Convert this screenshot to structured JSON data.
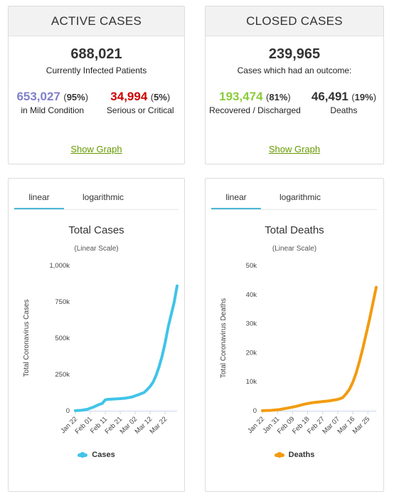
{
  "active_cases": {
    "header": "ACTIVE CASES",
    "total": "688,021",
    "total_label": "Currently Infected Patients",
    "mild": {
      "value": "653,027",
      "pct": "95%",
      "label": "in Mild Condition",
      "color": "#8080cc"
    },
    "serious": {
      "value": "34,994",
      "pct": "5%",
      "label": "Serious or Critical",
      "color": "#cc0000"
    },
    "link": "Show Graph"
  },
  "closed_cases": {
    "header": "CLOSED CASES",
    "total": "239,965",
    "total_label": "Cases which had an outcome:",
    "recovered": {
      "value": "193,474",
      "pct": "81%",
      "label": "Recovered / Discharged",
      "color": "#8acc3a"
    },
    "deaths": {
      "value": "46,491",
      "pct": "19%",
      "label": "Deaths",
      "color": "#333333"
    },
    "link": "Show Graph"
  },
  "cases_chart_panel": {
    "tabs": [
      "linear",
      "logarithmic"
    ],
    "active_tab": "linear"
  },
  "deaths_chart_panel": {
    "tabs": [
      "linear",
      "logarithmic"
    ],
    "active_tab": "linear"
  },
  "chart_data": [
    {
      "type": "line",
      "title": "Total Cases",
      "subtitle": "(Linear Scale)",
      "ylabel": "Total Coronavirus Cases",
      "xlabel": "",
      "ylim": [
        0,
        1000000
      ],
      "yticks": [
        0,
        250000,
        500000,
        750000,
        1000000
      ],
      "ytick_labels": [
        "0",
        "250k",
        "500k",
        "750k",
        "1,000k"
      ],
      "xtick_labels": [
        "Jan 22",
        "Feb 01",
        "Feb 11",
        "Feb 21",
        "Mar 02",
        "Mar 12",
        "Mar 22"
      ],
      "xtick_days": [
        0,
        10,
        20,
        30,
        40,
        50,
        60
      ],
      "x_range": [
        0,
        68
      ],
      "color": "#40c4e8",
      "legend": "bottom-center",
      "series": [
        {
          "name": "Cases",
          "x": [
            0,
            4,
            8,
            12,
            14,
            16,
            18,
            20,
            22,
            26,
            30,
            34,
            38,
            42,
            46,
            48,
            50,
            52,
            54,
            56,
            58,
            60,
            62,
            64,
            66,
            68
          ],
          "values": [
            555,
            2800,
            9800,
            24500,
            34500,
            43100,
            51100,
            75200,
            78600,
            81100,
            83100,
            87100,
            95100,
            110000,
            125900,
            145300,
            167500,
            198000,
            245000,
            305000,
            378000,
            468000,
            575000,
            660000,
            745000,
            860000
          ]
        }
      ]
    },
    {
      "type": "line",
      "title": "Total Deaths",
      "subtitle": "(Linear Scale)",
      "ylabel": "Total Coronavirus Deaths",
      "xlabel": "",
      "ylim": [
        0,
        50000
      ],
      "yticks": [
        0,
        10000,
        20000,
        30000,
        40000,
        50000
      ],
      "ytick_labels": [
        "0",
        "10k",
        "20k",
        "30k",
        "40k",
        "50k"
      ],
      "xtick_labels": [
        "Jan 22",
        "Jan 31",
        "Feb 09",
        "Feb 18",
        "Feb 27",
        "Mar 07",
        "Mar 16",
        "Mar 25"
      ],
      "xtick_days": [
        0,
        9,
        18,
        27,
        36,
        45,
        54,
        63
      ],
      "x_range": [
        0,
        68
      ],
      "color": "#f29b10",
      "legend": "bottom-center",
      "series": [
        {
          "name": "Deaths",
          "x": [
            0,
            5,
            10,
            15,
            20,
            25,
            30,
            35,
            40,
            45,
            48,
            50,
            52,
            54,
            56,
            58,
            60,
            62,
            64,
            66,
            68
          ],
          "values": [
            17,
            130,
            400,
            900,
            1500,
            2250,
            2800,
            3100,
            3400,
            3900,
            4500,
            5800,
            7400,
            9800,
            13000,
            17000,
            21500,
            26500,
            31500,
            37000,
            42500
          ]
        }
      ]
    }
  ]
}
